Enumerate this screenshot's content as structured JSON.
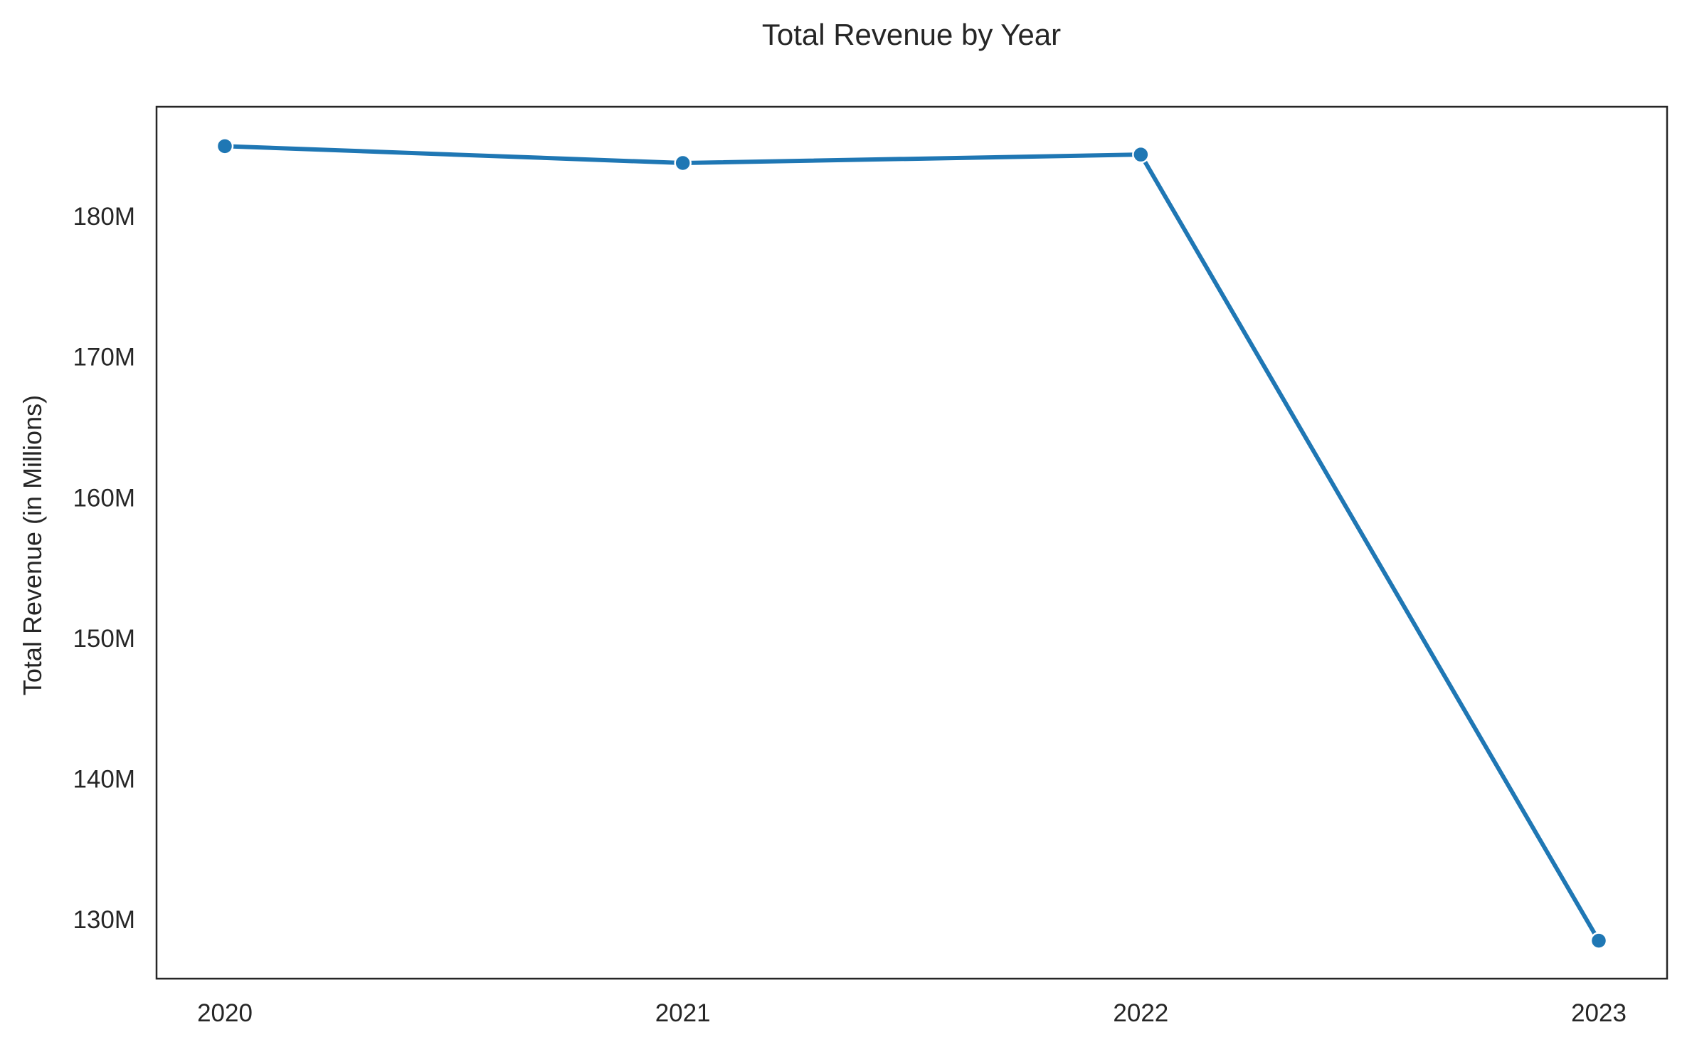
{
  "chart_data": {
    "type": "line",
    "title": "Total Revenue by Year",
    "xlabel": "",
    "ylabel": "Total Revenue (in Millions)",
    "x": [
      "2020",
      "2021",
      "2022",
      "2023"
    ],
    "series": [
      {
        "values": [
          185.0,
          183.8,
          184.4,
          128.5
        ],
        "color": "#1f77b4"
      }
    ],
    "ylim": [
      125.8,
      187.8
    ],
    "yticks": [
      130,
      140,
      150,
      160,
      170,
      180
    ],
    "ytick_labels": [
      "130M",
      "140M",
      "150M",
      "160M",
      "170M",
      "180M"
    ],
    "grid": false,
    "legend": "none"
  }
}
